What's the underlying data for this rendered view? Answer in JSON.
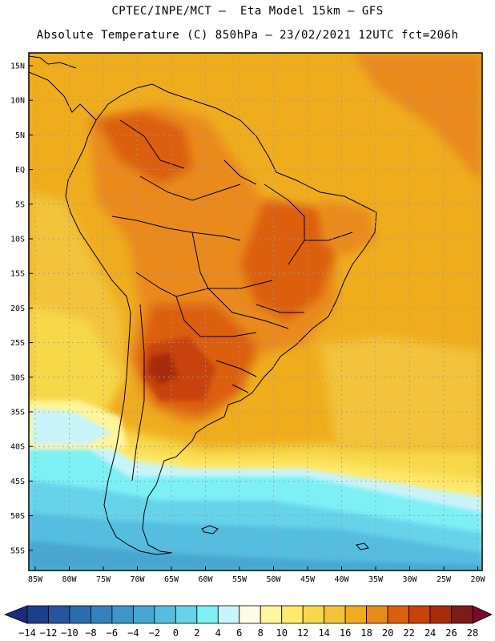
{
  "header": {
    "line1": "CPTEC/INPE/MCT –  Eta Model 15km – GFS",
    "line2": "Absolute Temperature (C) 850hPa – 23/02/2021 12UTC fct=206h"
  },
  "axes": {
    "lat_labels": [
      "15N",
      "10N",
      "5N",
      "EQ",
      "5S",
      "10S",
      "15S",
      "20S",
      "25S",
      "30S",
      "35S",
      "40S",
      "45S",
      "50S",
      "55S"
    ],
    "lon_labels": [
      "85W",
      "80W",
      "75W",
      "70W",
      "65W",
      "60W",
      "55W",
      "50W",
      "45W",
      "40W",
      "35W",
      "30W",
      "25W",
      "20W"
    ]
  },
  "colorbar": {
    "labels": [
      "-14",
      "-12",
      "-10",
      "-8",
      "-6",
      "-4",
      "-2",
      "0",
      "2",
      "4",
      "6",
      "8",
      "10",
      "12",
      "14",
      "16",
      "18",
      "20",
      "22",
      "24",
      "26",
      "28"
    ],
    "colors": [
      "#1c3f8a",
      "#2456a0",
      "#2c6db0",
      "#3581bd",
      "#3d95c8",
      "#46a7d2",
      "#55bde0",
      "#66d3ea",
      "#7cf0f5",
      "#c8f4fa",
      "#fffbe6",
      "#fff59a",
      "#ffe96a",
      "#f7d84a",
      "#f2c33a",
      "#efad1e",
      "#ea8a1a",
      "#dc5f0c",
      "#c8420a",
      "#a82c0c",
      "#7c1c1a"
    ],
    "end_low": "#1b2b7a",
    "end_high": "#7a0a2a"
  }
}
